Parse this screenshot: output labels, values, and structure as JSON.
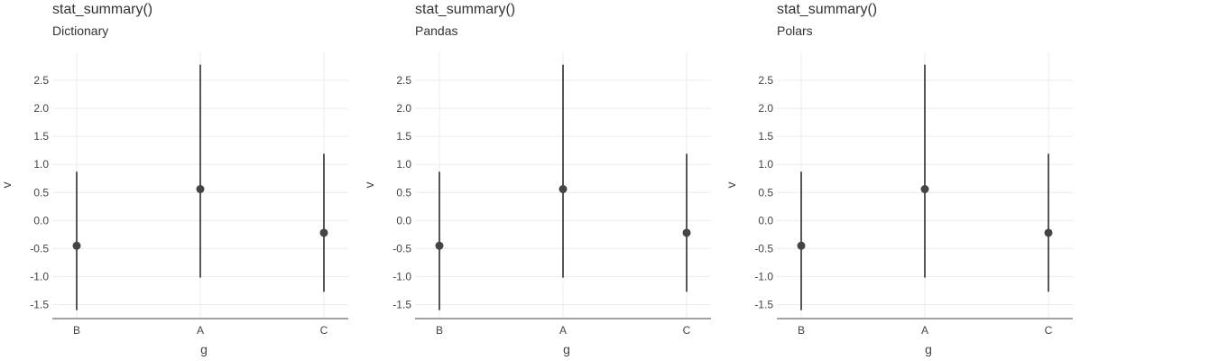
{
  "chart_data": [
    {
      "type": "pointrange",
      "title": "stat_summary()",
      "subtitle": "Dictionary",
      "xlabel": "g",
      "ylabel": "v",
      "categories": [
        "B",
        "A",
        "C"
      ],
      "ylim": [
        -1.75,
        3.0
      ],
      "yticks": [
        -1.5,
        -1.0,
        -0.5,
        0.0,
        0.5,
        1.0,
        1.5,
        2.0,
        2.5
      ],
      "ytick_labels": [
        "-1.5",
        "-1.0",
        "-0.5",
        "0.0",
        "0.5",
        "1.0",
        "1.5",
        "2.0",
        "2.5"
      ],
      "points": [
        {
          "x": "B",
          "y": -0.45,
          "ymin": -1.6,
          "ymax": 0.87
        },
        {
          "x": "A",
          "y": 0.56,
          "ymin": -1.02,
          "ymax": 2.78
        },
        {
          "x": "C",
          "y": -0.22,
          "ymin": -1.27,
          "ymax": 1.19
        }
      ],
      "grid": true
    },
    {
      "type": "pointrange",
      "title": "stat_summary()",
      "subtitle": "Pandas",
      "xlabel": "g",
      "ylabel": "v",
      "categories": [
        "B",
        "A",
        "C"
      ],
      "ylim": [
        -1.75,
        3.0
      ],
      "yticks": [
        -1.5,
        -1.0,
        -0.5,
        0.0,
        0.5,
        1.0,
        1.5,
        2.0,
        2.5
      ],
      "ytick_labels": [
        "-1.5",
        "-1.0",
        "-0.5",
        "0.0",
        "0.5",
        "1.0",
        "1.5",
        "2.0",
        "2.5"
      ],
      "points": [
        {
          "x": "B",
          "y": -0.45,
          "ymin": -1.6,
          "ymax": 0.87
        },
        {
          "x": "A",
          "y": 0.56,
          "ymin": -1.02,
          "ymax": 2.78
        },
        {
          "x": "C",
          "y": -0.22,
          "ymin": -1.27,
          "ymax": 1.19
        }
      ],
      "grid": true
    },
    {
      "type": "pointrange",
      "title": "stat_summary()",
      "subtitle": "Polars",
      "xlabel": "g",
      "ylabel": "v",
      "categories": [
        "B",
        "A",
        "C"
      ],
      "ylim": [
        -1.75,
        3.0
      ],
      "yticks": [
        -1.5,
        -1.0,
        -0.5,
        0.0,
        0.5,
        1.0,
        1.5,
        2.0,
        2.5
      ],
      "ytick_labels": [
        "-1.5",
        "-1.0",
        "-0.5",
        "0.0",
        "0.5",
        "1.0",
        "1.5",
        "2.0",
        "2.5"
      ],
      "points": [
        {
          "x": "B",
          "y": -0.45,
          "ymin": -1.6,
          "ymax": 0.87
        },
        {
          "x": "A",
          "y": 0.56,
          "ymin": -1.02,
          "ymax": 2.78
        },
        {
          "x": "C",
          "y": -0.22,
          "ymin": -1.27,
          "ymax": 1.19
        }
      ],
      "grid": true
    }
  ]
}
